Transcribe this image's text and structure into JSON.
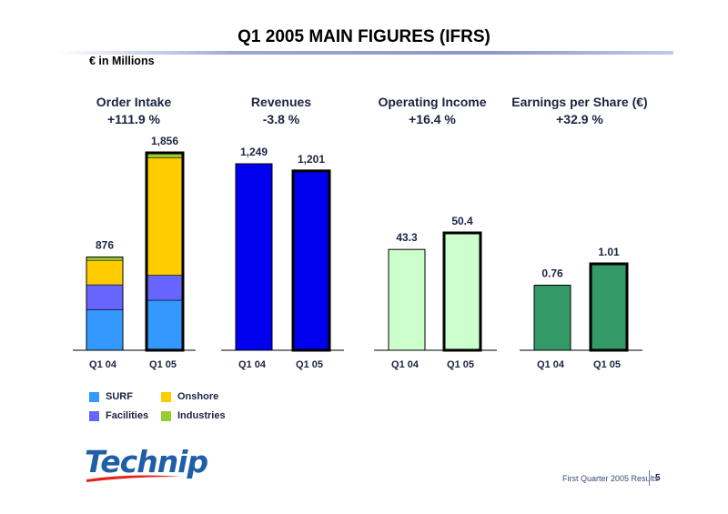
{
  "title": "Q1 2005 MAIN FIGURES (IFRS)",
  "units": "€ in Millions",
  "colors": {
    "surf": "#3399ff",
    "facilities": "#6666ff",
    "onshore": "#ffcc00",
    "industries": "#99cc33",
    "revenues": "#0000ee",
    "operating_income": "#ccffcc",
    "eps": "#339966"
  },
  "chart_data": [
    {
      "type": "bar",
      "stacked": true,
      "title": "Order Intake",
      "subtitle": "+111.9 %",
      "categories": [
        "Q1 04",
        "Q1 05"
      ],
      "series": [
        {
          "name": "SURF",
          "values": [
            380,
            470
          ]
        },
        {
          "name": "Facilities",
          "values": [
            235,
            235
          ]
        },
        {
          "name": "Onshore",
          "values": [
            230,
            1106
          ]
        },
        {
          "name": "Industries",
          "values": [
            31,
            45
          ]
        }
      ],
      "totals": [
        "876",
        "1,856"
      ]
    },
    {
      "type": "bar",
      "title": "Revenues",
      "subtitle": "-3.8 %",
      "categories": [
        "Q1 04",
        "Q1 05"
      ],
      "values": [
        1249,
        1201
      ],
      "labels": [
        "1,249",
        "1,201"
      ]
    },
    {
      "type": "bar",
      "title": "Operating Income",
      "subtitle": "+16.4 %",
      "categories": [
        "Q1 04",
        "Q1 05"
      ],
      "values": [
        43.3,
        50.4
      ],
      "labels": [
        "43.3",
        "50.4"
      ]
    },
    {
      "type": "bar",
      "title": "Earnings per Share (€)",
      "subtitle": "+32.9 %",
      "categories": [
        "Q1 04",
        "Q1 05"
      ],
      "values": [
        0.76,
        1.01
      ],
      "labels": [
        "0.76",
        "1.01"
      ]
    }
  ],
  "legend": [
    {
      "name": "SURF",
      "color": "#3399ff"
    },
    {
      "name": "Onshore",
      "color": "#ffcc00"
    },
    {
      "name": "Facilities",
      "color": "#6666ff"
    },
    {
      "name": "Industries",
      "color": "#99cc33"
    }
  ],
  "logo_text": "Technip",
  "footer": {
    "text": "First Quarter 2005 Results",
    "page": "5"
  }
}
